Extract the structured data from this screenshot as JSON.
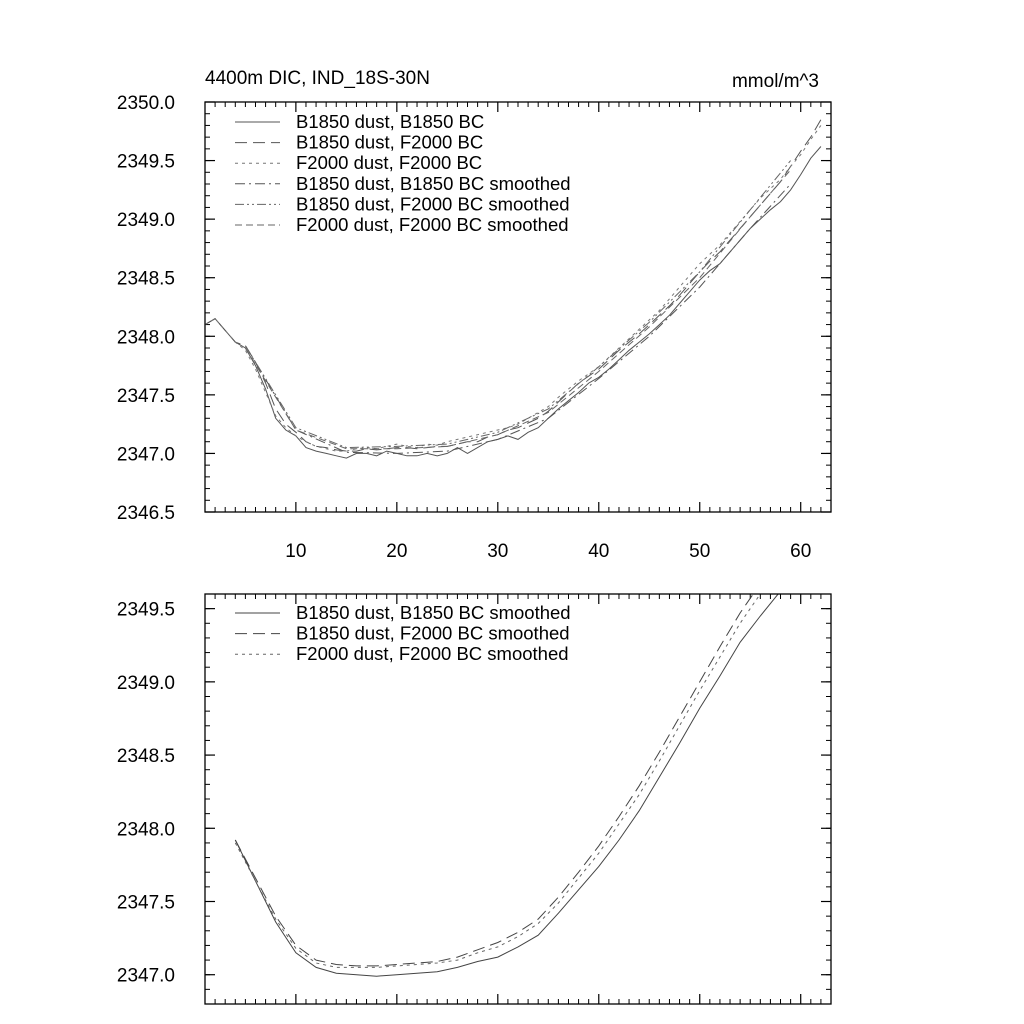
{
  "chart_data": [
    {
      "type": "line",
      "title": "4400m DIC, IND_18S-30N",
      "units_label": "mmol/m^3",
      "xlim": [
        1,
        63
      ],
      "ylim": [
        2346.5,
        2350.0
      ],
      "xticks": [
        10,
        20,
        30,
        40,
        50,
        60
      ],
      "yticks": [
        2346.5,
        2347.0,
        2347.5,
        2348.0,
        2348.5,
        2349.0,
        2349.5,
        2350.0
      ],
      "xtick_labels": [
        "10",
        "20",
        "30",
        "40",
        "50",
        "60"
      ],
      "ytick_labels": [
        "2346.5",
        "2347.0",
        "2347.5",
        "2348.0",
        "2348.5",
        "2349.0",
        "2349.5",
        "2350.0"
      ],
      "legend_position": "top-left",
      "grid": false,
      "series": [
        {
          "name": "B1850 dust, B1850 BC",
          "dash": "solid",
          "color": "#555555",
          "x": [
            1,
            2,
            3,
            4,
            5,
            6,
            7,
            8,
            9,
            10,
            11,
            12,
            13,
            14,
            15,
            16,
            17,
            18,
            19,
            20,
            21,
            22,
            23,
            24,
            25,
            26,
            27,
            28,
            29,
            30,
            31,
            32,
            33,
            34,
            35,
            36,
            37,
            38,
            39,
            40,
            41,
            42,
            43,
            44,
            45,
            46,
            47,
            48,
            49,
            50,
            51,
            52,
            53,
            54,
            55,
            56,
            57,
            58,
            59,
            60,
            61,
            62
          ],
          "y": [
            2348.1,
            2348.15,
            2348.05,
            2347.95,
            2347.9,
            2347.75,
            2347.55,
            2347.3,
            2347.2,
            2347.15,
            2347.05,
            2347.02,
            2347.0,
            2346.98,
            2346.96,
            2347.0,
            2347.0,
            2346.98,
            2347.02,
            2347.0,
            2346.98,
            2346.98,
            2347.0,
            2346.98,
            2347.0,
            2347.05,
            2347.0,
            2347.05,
            2347.1,
            2347.12,
            2347.15,
            2347.12,
            2347.18,
            2347.22,
            2347.3,
            2347.38,
            2347.45,
            2347.52,
            2347.6,
            2347.65,
            2347.72,
            2347.8,
            2347.88,
            2347.95,
            2348.02,
            2348.1,
            2348.18,
            2348.28,
            2348.38,
            2348.48,
            2348.56,
            2348.62,
            2348.72,
            2348.82,
            2348.92,
            2349.0,
            2349.08,
            2349.15,
            2349.25,
            2349.38,
            2349.52,
            2349.62
          ]
        },
        {
          "name": "B1850 dust, F2000 BC",
          "dash": "long",
          "color": "#555555",
          "x": [
            1,
            2,
            3,
            4,
            5,
            6,
            7,
            8,
            9,
            10,
            11,
            12,
            13,
            14,
            15,
            16,
            17,
            18,
            19,
            20,
            21,
            22,
            23,
            24,
            25,
            26,
            27,
            28,
            29,
            30,
            31,
            32,
            33,
            34,
            35,
            36,
            37,
            38,
            39,
            40,
            41,
            42,
            43,
            44,
            45,
            46,
            47,
            48,
            49,
            50,
            51,
            52,
            53,
            54,
            55,
            56,
            57,
            58,
            59,
            60,
            61,
            62
          ],
          "y": [
            2348.1,
            2348.15,
            2348.05,
            2347.95,
            2347.92,
            2347.78,
            2347.6,
            2347.38,
            2347.25,
            2347.18,
            2347.1,
            2347.06,
            2347.05,
            2347.03,
            2347.02,
            2347.02,
            2347.04,
            2347.03,
            2347.04,
            2347.05,
            2347.05,
            2347.04,
            2347.05,
            2347.06,
            2347.06,
            2347.08,
            2347.1,
            2347.1,
            2347.14,
            2347.16,
            2347.2,
            2347.22,
            2347.26,
            2347.3,
            2347.36,
            2347.44,
            2347.52,
            2347.6,
            2347.66,
            2347.72,
            2347.8,
            2347.88,
            2347.95,
            2348.02,
            2348.1,
            2348.18,
            2348.26,
            2348.35,
            2348.45,
            2348.55,
            2348.64,
            2348.72,
            2348.82,
            2348.92,
            2349.02,
            2349.12,
            2349.22,
            2349.32,
            2349.45,
            2349.58,
            2349.7,
            2349.85
          ]
        },
        {
          "name": "F2000 dust, F2000 BC",
          "dash": "short",
          "color": "#777777",
          "x": [
            1,
            2,
            3,
            4,
            5,
            6,
            7,
            8,
            9,
            10,
            11,
            12,
            13,
            14,
            15,
            16,
            17,
            18,
            19,
            20,
            21,
            22,
            23,
            24,
            25,
            26,
            27,
            28,
            29,
            30,
            31,
            32,
            33,
            34,
            35,
            36,
            37,
            38,
            39,
            40,
            41,
            42,
            43,
            44,
            45,
            46,
            47,
            48,
            49,
            50,
            51,
            52,
            53,
            54,
            55,
            56,
            57,
            58,
            59,
            60,
            61,
            62
          ],
          "y": [
            2348.1,
            2348.15,
            2348.05,
            2347.95,
            2347.88,
            2347.72,
            2347.52,
            2347.32,
            2347.22,
            2347.15,
            2347.1,
            2347.06,
            2347.04,
            2347.02,
            2347.02,
            2347.04,
            2347.05,
            2347.04,
            2347.06,
            2347.08,
            2347.06,
            2347.05,
            2347.08,
            2347.07,
            2347.1,
            2347.12,
            2347.14,
            2347.16,
            2347.18,
            2347.2,
            2347.22,
            2347.25,
            2347.3,
            2347.35,
            2347.4,
            2347.48,
            2347.55,
            2347.62,
            2347.68,
            2347.74,
            2347.82,
            2347.9,
            2347.98,
            2348.06,
            2348.14,
            2348.22,
            2348.32,
            2348.42,
            2348.52,
            2348.62,
            2348.7,
            2348.78,
            2348.88,
            2348.98,
            2349.08,
            2349.18,
            2349.26,
            2349.34,
            2349.45,
            2349.55,
            2349.68,
            2349.8
          ]
        },
        {
          "name": "B1850 dust, B1850 BC smoothed",
          "dash": "dashdot",
          "color": "#555555",
          "x": [
            5,
            10,
            15,
            20,
            25,
            30,
            35,
            40,
            45,
            50,
            55,
            59
          ],
          "y": [
            2347.92,
            2347.2,
            2347.01,
            2347.0,
            2347.02,
            2347.12,
            2347.3,
            2347.64,
            2348.0,
            2348.42,
            2348.92,
            2349.3
          ]
        },
        {
          "name": "B1850 dust, F2000 BC smoothed",
          "dash": "dashdotdot",
          "color": "#666666",
          "x": [
            5,
            10,
            15,
            20,
            25,
            30,
            35,
            40,
            45,
            50,
            55,
            59
          ],
          "y": [
            2347.92,
            2347.22,
            2347.05,
            2347.06,
            2347.08,
            2347.18,
            2347.38,
            2347.74,
            2348.12,
            2348.55,
            2349.08,
            2349.5
          ]
        },
        {
          "name": "F2000 dust, F2000 BC smoothed",
          "dash": "medium",
          "color": "#666666",
          "x": [
            5,
            10,
            15,
            20,
            25,
            30,
            35,
            40,
            45,
            50,
            55,
            59
          ],
          "y": [
            2347.9,
            2347.2,
            2347.04,
            2347.04,
            2347.06,
            2347.16,
            2347.35,
            2347.7,
            2348.08,
            2348.5,
            2349.02,
            2349.42
          ]
        }
      ]
    },
    {
      "type": "line",
      "title": "",
      "xlim": [
        1,
        63
      ],
      "ylim": [
        2346.8,
        2349.6
      ],
      "xticks": [
        10,
        20,
        30,
        40,
        50,
        60
      ],
      "yticks": [
        2347.0,
        2347.5,
        2348.0,
        2348.5,
        2349.0,
        2349.5
      ],
      "ytick_labels": [
        "2347.0",
        "2347.5",
        "2348.0",
        "2348.5",
        "2349.0",
        "2349.5"
      ],
      "legend_position": "top-left",
      "grid": false,
      "series": [
        {
          "name": "B1850 dust, B1850 BC smoothed",
          "dash": "solid",
          "color": "#444444",
          "x": [
            4,
            6,
            8,
            10,
            12,
            14,
            16,
            18,
            20,
            22,
            24,
            26,
            28,
            30,
            32,
            34,
            36,
            38,
            40,
            42,
            44,
            46,
            48,
            50,
            52,
            54,
            56,
            58,
            59
          ],
          "y": [
            2347.92,
            2347.64,
            2347.36,
            2347.15,
            2347.05,
            2347.01,
            2347.0,
            2346.99,
            2347.0,
            2347.01,
            2347.02,
            2347.05,
            2347.09,
            2347.12,
            2347.19,
            2347.27,
            2347.42,
            2347.58,
            2347.74,
            2347.92,
            2348.12,
            2348.35,
            2348.58,
            2348.82,
            2349.04,
            2349.27,
            2349.45,
            2349.62,
            2349.72
          ]
        },
        {
          "name": "B1850 dust, F2000 BC smoothed",
          "dash": "long",
          "color": "#444444",
          "x": [
            4,
            6,
            8,
            10,
            12,
            14,
            16,
            18,
            20,
            22,
            24,
            26,
            28,
            30,
            32,
            34,
            36,
            38,
            40,
            42,
            44,
            46,
            48,
            50,
            52,
            54,
            56,
            58,
            59
          ],
          "y": [
            2347.92,
            2347.66,
            2347.4,
            2347.2,
            2347.1,
            2347.07,
            2347.06,
            2347.06,
            2347.07,
            2347.08,
            2347.09,
            2347.12,
            2347.17,
            2347.22,
            2347.29,
            2347.38,
            2347.53,
            2347.7,
            2347.88,
            2348.08,
            2348.29,
            2348.52,
            2348.76,
            2349.0,
            2349.24,
            2349.47,
            2349.67,
            2349.85,
            2349.95
          ]
        },
        {
          "name": "F2000 dust, F2000 BC smoothed",
          "dash": "short",
          "color": "#666666",
          "x": [
            4,
            6,
            8,
            10,
            12,
            14,
            16,
            18,
            20,
            22,
            24,
            26,
            28,
            30,
            32,
            34,
            36,
            38,
            40,
            42,
            44,
            46,
            48,
            50,
            52,
            54,
            56,
            58,
            59
          ],
          "y": [
            2347.9,
            2347.64,
            2347.38,
            2347.18,
            2347.08,
            2347.05,
            2347.05,
            2347.05,
            2347.06,
            2347.07,
            2347.08,
            2347.1,
            2347.15,
            2347.19,
            2347.26,
            2347.35,
            2347.49,
            2347.66,
            2347.83,
            2348.03,
            2348.23,
            2348.46,
            2348.7,
            2348.94,
            2349.17,
            2349.4,
            2349.6,
            2349.77,
            2349.85
          ]
        }
      ]
    }
  ]
}
